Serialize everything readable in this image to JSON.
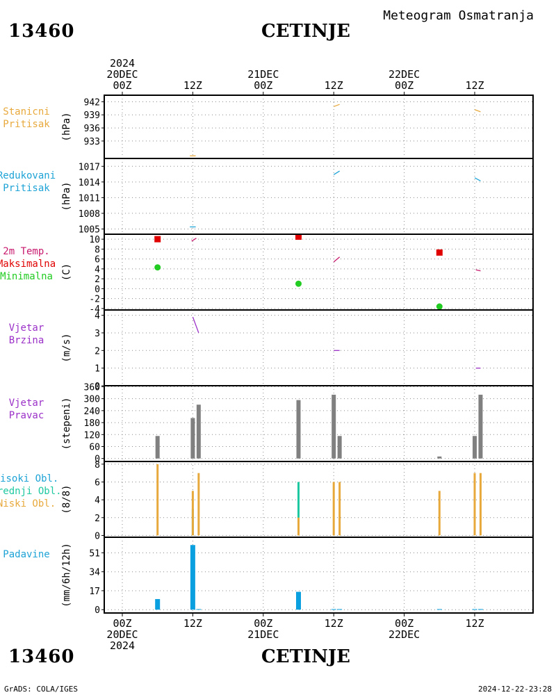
{
  "header": {
    "station_id": "13460",
    "station_name": "CETINJE",
    "product": "Meteogram Osmatranja"
  },
  "footer": {
    "station_id": "13460",
    "station_name": "CETINJE",
    "credit": "GrADS: COLA/IGES",
    "timestamp": "2024-12-22-23:28"
  },
  "time_axis": {
    "top_ticks": [
      {
        "lines": [
          "2024",
          "20DEC",
          "00Z"
        ]
      },
      {
        "lines": [
          "12Z"
        ]
      },
      {
        "lines": [
          "21DEC",
          "00Z"
        ]
      },
      {
        "lines": [
          "12Z"
        ]
      },
      {
        "lines": [
          "22DEC",
          "00Z"
        ]
      },
      {
        "lines": [
          "12Z"
        ]
      }
    ],
    "bottom_ticks": [
      {
        "lines": [
          "00Z",
          "20DEC",
          "2024"
        ]
      },
      {
        "lines": [
          "12Z"
        ]
      },
      {
        "lines": [
          "00Z",
          "21DEC"
        ]
      },
      {
        "lines": [
          "12Z"
        ]
      },
      {
        "lines": [
          "00Z",
          "22DEC"
        ]
      },
      {
        "lines": [
          "12Z"
        ]
      }
    ]
  },
  "colors": {
    "orange": "#e8a93c",
    "cyan": "#1ea3d6",
    "magenta": "#c8196e",
    "red": "#e00000",
    "green": "#22cc22",
    "purple": "#9b30c8",
    "gray": "#808080",
    "teal": "#1ec8a0",
    "blue": "#0aa0e0"
  },
  "chart_data": [
    {
      "type": "line",
      "panel_title": [
        "Stanicni",
        "Pritisak"
      ],
      "title_color": "#e8a93c",
      "ylabel": "(hPa)",
      "ylim": [
        929,
        943.5
      ],
      "yticks": [
        "942",
        "939",
        "936",
        "933"
      ],
      "ytick_values": [
        942,
        939,
        936,
        933
      ],
      "series": [
        {
          "color": "#e8a93c",
          "points": [
            [
              11.5,
              929.6
            ],
            [
              12.5,
              929.6
            ]
          ]
        },
        {
          "color": "#e8a93c",
          "points": [
            [
              36,
              940.9
            ],
            [
              37,
              941.4
            ]
          ]
        },
        {
          "color": "#e8a93c",
          "points": [
            [
              60,
              940.2
            ],
            [
              61,
              939.7
            ]
          ]
        }
      ]
    },
    {
      "type": "line",
      "panel_title": [
        "Redukovani",
        "Pritisak"
      ],
      "title_color": "#1ea3d6",
      "ylabel": "(hPa)",
      "ylim": [
        1004,
        1018.5
      ],
      "yticks": [
        "1017",
        "1014",
        "1011",
        "1008",
        "1005"
      ],
      "ytick_values": [
        1017,
        1014,
        1011,
        1008,
        1005
      ],
      "series": [
        {
          "color": "#1ea3d6",
          "points": [
            [
              11.5,
              1005.4
            ],
            [
              12.5,
              1005.4
            ]
          ]
        },
        {
          "color": "#1ea3d6",
          "points": [
            [
              36,
              1015.4
            ],
            [
              37,
              1016.1
            ]
          ]
        },
        {
          "color": "#1ea3d6",
          "points": [
            [
              60,
              1014.8
            ],
            [
              61,
              1014.2
            ]
          ]
        }
      ]
    },
    {
      "type": "line",
      "panel_title": [
        "2m Temp.",
        "Maksimalna",
        "Minimalna"
      ],
      "title_colors": [
        "#c8196e",
        "#e00000",
        "#22cc22"
      ],
      "ylabel": "(C)",
      "ylim": [
        -4.3,
        11
      ],
      "yticks": [
        "10",
        "8",
        "6",
        "4",
        "2",
        "0",
        "-2",
        "-4"
      ],
      "ytick_values": [
        10,
        8,
        6,
        4,
        2,
        0,
        -2,
        -4
      ],
      "series": [
        {
          "color": "#c8196e",
          "points": [
            [
              11.8,
              9.6
            ],
            [
              12.6,
              10.2
            ]
          ]
        },
        {
          "color": "#c8196e",
          "points": [
            [
              36,
              5.4
            ],
            [
              37,
              6.4
            ]
          ]
        },
        {
          "color": "#c8196e",
          "points": [
            [
              60.2,
              3.8
            ],
            [
              61,
              3.6
            ]
          ]
        }
      ],
      "maximum": [
        {
          "x": 6,
          "y": 10
        },
        {
          "x": 30,
          "y": 10.5
        },
        {
          "x": 54,
          "y": 7.3
        }
      ],
      "minimum": [
        {
          "x": 6,
          "y": 4.3
        },
        {
          "x": 30,
          "y": 1.0
        },
        {
          "x": 54,
          "y": -3.6
        }
      ]
    },
    {
      "type": "line",
      "panel_title": [
        "Vjetar",
        "Brzina"
      ],
      "title_color": "#9b30c8",
      "ylabel": "(m/s)",
      "ylim": [
        0,
        4.3
      ],
      "yticks": [
        "4",
        "3",
        "2",
        "1",
        "0"
      ],
      "ytick_values": [
        4,
        3,
        2,
        1,
        0
      ],
      "series": [
        {
          "color": "#9b30c8",
          "points": [
            [
              12,
              3.9
            ],
            [
              13,
              3.0
            ]
          ]
        },
        {
          "color": "#9b30c8",
          "points": [
            [
              36,
              2.0
            ],
            [
              37,
              2.0
            ]
          ]
        },
        {
          "color": "#9b30c8",
          "points": [
            [
              60.2,
              1.0
            ],
            [
              61,
              1.0
            ]
          ]
        }
      ]
    },
    {
      "type": "bar",
      "panel_title": [
        "Vjetar",
        "Pravac"
      ],
      "title_color": "#9b30c8",
      "ylabel": "(stepeni)",
      "ylim": [
        -15,
        365
      ],
      "yticks": [
        "360",
        "300",
        "240",
        "180",
        "120",
        "60",
        "0"
      ],
      "ytick_values": [
        360,
        300,
        240,
        180,
        120,
        60,
        0
      ],
      "series": [
        {
          "name": "",
          "color": "#808080",
          "x": [
            6,
            12,
            13,
            30,
            36,
            37,
            54,
            60,
            61
          ],
          "values": [
            113,
            203,
            270,
            293,
            320,
            113,
            10,
            113,
            320
          ]
        }
      ]
    },
    {
      "type": "bar",
      "panel_title": [
        "Visoki Obl.",
        "Srednji Obl.",
        "Niski Obl."
      ],
      "title_colors": [
        "#1ea3d6",
        "#1ec8a0",
        "#e8a93c"
      ],
      "ylabel": "(8/8)",
      "ylim": [
        -0.2,
        8.3
      ],
      "yticks": [
        "8",
        "6",
        "4",
        "2",
        "0"
      ],
      "ytick_values": [
        8,
        6,
        4,
        2,
        0
      ],
      "series": [
        {
          "name": "Srednji Obl.",
          "color": "#1ec8a0",
          "x": [
            12,
            30
          ],
          "values": [
            3,
            6
          ]
        },
        {
          "name": "Niski Obl.",
          "color": "#e8a93c",
          "x": [
            6,
            12,
            13,
            30,
            36,
            37,
            54,
            60,
            61
          ],
          "values": [
            8,
            5,
            7,
            2,
            6,
            6,
            5,
            7,
            7
          ]
        }
      ]
    },
    {
      "type": "bar",
      "panel_title": [
        "Padavine"
      ],
      "title_color": "#1ea3d6",
      "ylabel": "(mm/6h/12h)",
      "ylim": [
        -3,
        65
      ],
      "yticks": [
        "51",
        "34",
        "17",
        "0"
      ],
      "ytick_values": [
        51,
        34,
        17,
        0
      ],
      "series": [
        {
          "name": "",
          "color": "#0aa0e0",
          "x": [
            6,
            12,
            13,
            30,
            36,
            37,
            54,
            60,
            61
          ],
          "values": [
            9.5,
            58,
            0.5,
            16,
            0.5,
            0.5,
            0.5,
            0.5,
            0.5
          ]
        }
      ]
    }
  ]
}
